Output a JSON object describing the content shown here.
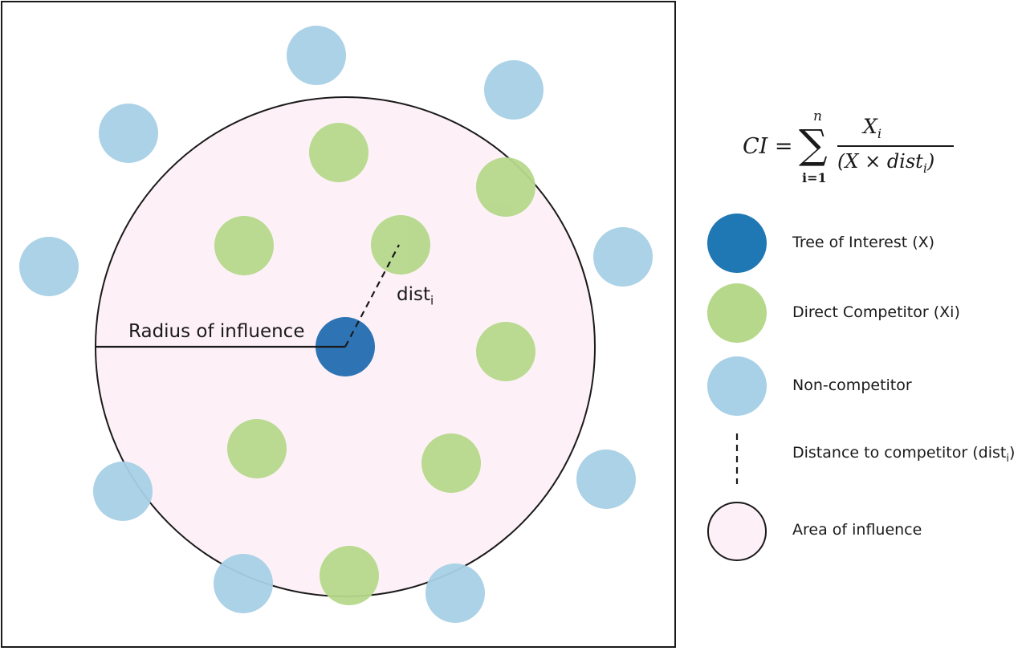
{
  "colors": {
    "tree_of_interest": "#1f77b4",
    "direct_competitor": "#b5d88a",
    "non_competitor": "#a8d0e6",
    "area_of_influence": "#fdf1f7",
    "stroke": "#1a1a1a"
  },
  "diagram": {
    "radius_label": "Radius of influence",
    "dist_label": "dist",
    "dist_sub": "i"
  },
  "formula": {
    "lhs": "CI =",
    "sum_upper": "n",
    "sum_lower": "i=1",
    "numerator": "X",
    "numerator_sub": "i",
    "denominator": "(X × dist",
    "denominator_sub": "i",
    "denominator_close": ")"
  },
  "legend": {
    "tree_of_interest": "Tree of Interest (X)",
    "direct_competitor": "Direct Competitor (Xi)",
    "non_competitor": "Non-competitor",
    "distance": "Distance to competitor (dist",
    "distance_sub": "i",
    "distance_close": ")",
    "area": "Area of influence"
  }
}
